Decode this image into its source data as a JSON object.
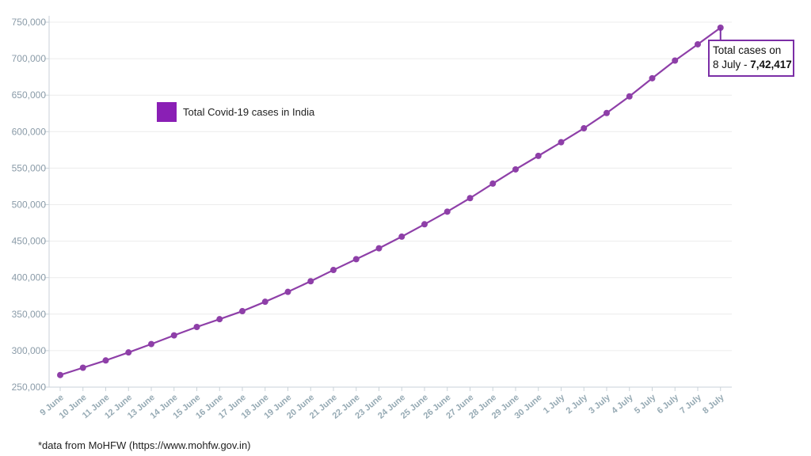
{
  "chart_data": {
    "type": "line",
    "categories": [
      "9 June",
      "10 June",
      "11 June",
      "12 June",
      "13 June",
      "14 June",
      "15 June",
      "16 June",
      "17 June",
      "18 June",
      "19 June",
      "20 June",
      "21 June",
      "22 June",
      "23 June",
      "24 June",
      "25 June",
      "26 June",
      "27 June",
      "28 June",
      "29 June",
      "30 June",
      "1 July",
      "2 July",
      "3 July",
      "4 July",
      "5 July",
      "6 July",
      "7 July",
      "8 July"
    ],
    "series": [
      {
        "name": "Total Covid-19 cases in India",
        "values": [
          266598,
          276583,
          286579,
          297535,
          308993,
          320922,
          332424,
          343091,
          354065,
          366946,
          380532,
          395048,
          410461,
          425282,
          440215,
          456183,
          473105,
          490401,
          508953,
          528859,
          548318,
          566840,
          585493,
          604641,
          625544,
          648315,
          673165,
          697413,
          719665,
          742417
        ],
        "color": "#8e3fa8"
      }
    ],
    "ylim": [
      250000,
      750000
    ],
    "yticks": [
      250000,
      300000,
      350000,
      400000,
      450000,
      500000,
      550000,
      600000,
      650000,
      700000,
      750000
    ],
    "ytick_labels": [
      "250,000",
      "300,000",
      "350,000",
      "400,000",
      "450,000",
      "500,000",
      "550,000",
      "600,000",
      "650,000",
      "700,000",
      "750,000"
    ],
    "grid": true,
    "legend": {
      "position": "top-left",
      "label": "Total Covid-19 cases in India",
      "swatch_color": "#8a1fb5"
    },
    "annotation": {
      "line1": "Total cases on",
      "line2_prefix": "8 July - ",
      "line2_value": "7,42,417",
      "border_color": "#7b2ea6",
      "point_index": 29
    },
    "footnote": "*data from MoHFW (https://www.mohfw.gov.in)"
  }
}
